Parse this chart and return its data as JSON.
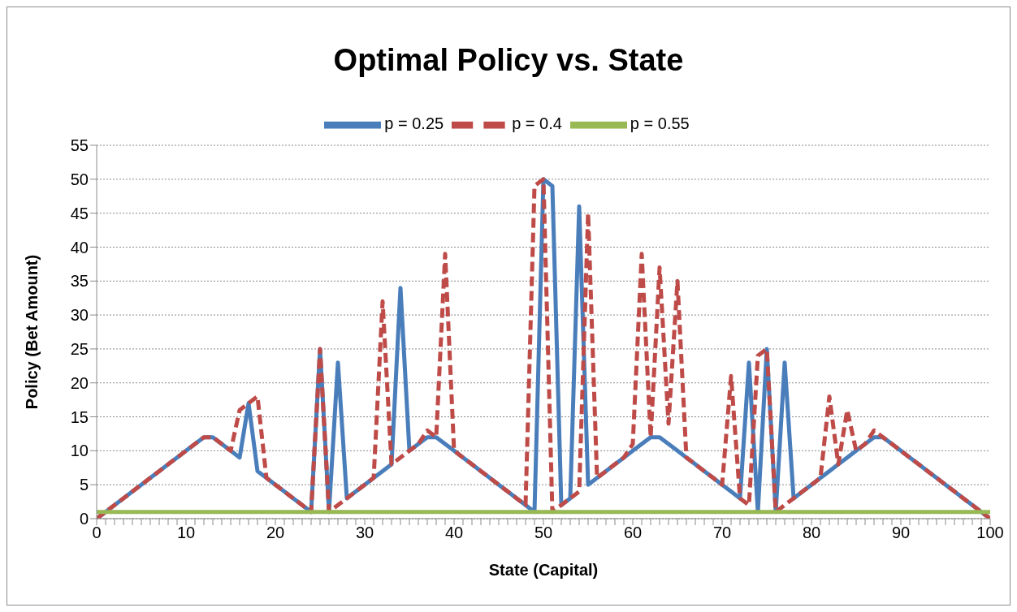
{
  "chart_data": {
    "type": "line",
    "title": "Optimal Policy vs. State",
    "xlabel": "State (Capital)",
    "ylabel": "Policy (Bet Amount)",
    "x": [
      0,
      1,
      2,
      3,
      4,
      5,
      6,
      7,
      8,
      9,
      10,
      11,
      12,
      13,
      14,
      15,
      16,
      17,
      18,
      19,
      20,
      21,
      22,
      23,
      24,
      25,
      26,
      27,
      28,
      29,
      30,
      31,
      32,
      33,
      34,
      35,
      36,
      37,
      38,
      39,
      40,
      41,
      42,
      43,
      44,
      45,
      46,
      47,
      48,
      49,
      50,
      51,
      52,
      53,
      54,
      55,
      56,
      57,
      58,
      59,
      60,
      61,
      62,
      63,
      64,
      65,
      66,
      67,
      68,
      69,
      70,
      71,
      72,
      73,
      74,
      75,
      76,
      77,
      78,
      79,
      80,
      81,
      82,
      83,
      84,
      85,
      86,
      87,
      88,
      89,
      90,
      91,
      92,
      93,
      94,
      95,
      96,
      97,
      98,
      99,
      100
    ],
    "series": [
      {
        "name": "p = 0.25",
        "color": "#4a7ebb",
        "line_style": "solid",
        "values": [
          0,
          1,
          2,
          3,
          4,
          5,
          6,
          7,
          8,
          9,
          10,
          11,
          12,
          12,
          11,
          10,
          9,
          17,
          7,
          6,
          5,
          4,
          3,
          2,
          1,
          25,
          1,
          23,
          3,
          4,
          5,
          6,
          7,
          8,
          34,
          10,
          11,
          12,
          12,
          11,
          10,
          9,
          8,
          7,
          6,
          5,
          4,
          3,
          2,
          1,
          50,
          49,
          2,
          3,
          46,
          5,
          6,
          7,
          8,
          9,
          10,
          11,
          12,
          12,
          11,
          10,
          9,
          8,
          7,
          6,
          5,
          4,
          3,
          23,
          1,
          25,
          1,
          23,
          3,
          4,
          5,
          6,
          7,
          8,
          9,
          10,
          11,
          12,
          12,
          11,
          10,
          9,
          8,
          7,
          6,
          5,
          4,
          3,
          2,
          1,
          0
        ]
      },
      {
        "name": "p = 0.4",
        "color": "#be4b48",
        "line_style": "dashed",
        "values": [
          0,
          1,
          2,
          3,
          4,
          5,
          6,
          7,
          8,
          9,
          10,
          11,
          12,
          12,
          11,
          10,
          16,
          17,
          18,
          6,
          5,
          4,
          3,
          2,
          1,
          25,
          1,
          2,
          3,
          4,
          5,
          6,
          32,
          8,
          9,
          10,
          11,
          13,
          12,
          39,
          10,
          9,
          8,
          7,
          6,
          5,
          4,
          3,
          2,
          49,
          50,
          1,
          2,
          3,
          4,
          45,
          6,
          7,
          8,
          9,
          11,
          39,
          12,
          37,
          14,
          35,
          9,
          8,
          7,
          6,
          5,
          21,
          3,
          2,
          24,
          25,
          1,
          2,
          3,
          4,
          5,
          6,
          18,
          8,
          16,
          10,
          11,
          13,
          12,
          11,
          10,
          9,
          8,
          7,
          6,
          5,
          4,
          3,
          2,
          1,
          0
        ]
      },
      {
        "name": "p = 0.55",
        "color": "#98b954",
        "line_style": "solid",
        "values": [
          1,
          1,
          1,
          1,
          1,
          1,
          1,
          1,
          1,
          1,
          1,
          1,
          1,
          1,
          1,
          1,
          1,
          1,
          1,
          1,
          1,
          1,
          1,
          1,
          1,
          1,
          1,
          1,
          1,
          1,
          1,
          1,
          1,
          1,
          1,
          1,
          1,
          1,
          1,
          1,
          1,
          1,
          1,
          1,
          1,
          1,
          1,
          1,
          1,
          1,
          1,
          1,
          1,
          1,
          1,
          1,
          1,
          1,
          1,
          1,
          1,
          1,
          1,
          1,
          1,
          1,
          1,
          1,
          1,
          1,
          1,
          1,
          1,
          1,
          1,
          1,
          1,
          1,
          1,
          1,
          1,
          1,
          1,
          1,
          1,
          1,
          1,
          1,
          1,
          1,
          1,
          1,
          1,
          1,
          1,
          1,
          1,
          1,
          1,
          1,
          1
        ]
      }
    ],
    "xlim": [
      0,
      100
    ],
    "xticks": [
      0,
      {
        "value": 1,
        "label": null
      },
      {
        "value": 2,
        "label": null
      },
      {
        "value": 3,
        "label": null
      },
      {
        "value": 4,
        "label": null
      },
      {
        "value": 5,
        "label": null
      },
      {
        "value": 6,
        "label": null
      },
      {
        "value": 7,
        "label": null
      },
      {
        "value": 8,
        "label": null
      },
      {
        "value": 9,
        "label": null
      },
      10,
      {
        "value": 11,
        "label": null
      },
      {
        "value": 12,
        "label": null
      },
      {
        "value": 13,
        "label": null
      },
      {
        "value": 14,
        "label": null
      },
      {
        "value": 15,
        "label": null
      },
      {
        "value": 16,
        "label": null
      },
      {
        "value": 17,
        "label": null
      },
      {
        "value": 18,
        "label": null
      },
      {
        "value": 19,
        "label": null
      },
      20,
      {
        "value": 21,
        "label": null
      },
      {
        "value": 22,
        "label": null
      },
      {
        "value": 23,
        "label": null
      },
      {
        "value": 24,
        "label": null
      },
      {
        "value": 25,
        "label": null
      },
      {
        "value": 26,
        "label": null
      },
      {
        "value": 27,
        "label": null
      },
      {
        "value": 28,
        "label": null
      },
      {
        "value": 29,
        "label": null
      },
      30,
      {
        "value": 31,
        "label": null
      },
      {
        "value": 32,
        "label": null
      },
      {
        "value": 33,
        "label": null
      },
      {
        "value": 34,
        "label": null
      },
      {
        "value": 35,
        "label": null
      },
      {
        "value": 36,
        "label": null
      },
      {
        "value": 37,
        "label": null
      },
      {
        "value": 38,
        "label": null
      },
      {
        "value": 39,
        "label": null
      },
      40,
      {
        "value": 41,
        "label": null
      },
      {
        "value": 42,
        "label": null
      },
      {
        "value": 43,
        "label": null
      },
      {
        "value": 44,
        "label": null
      },
      {
        "value": 45,
        "label": null
      },
      {
        "value": 46,
        "label": null
      },
      {
        "value": 47,
        "label": null
      },
      {
        "value": 48,
        "label": null
      },
      {
        "value": 49,
        "label": null
      },
      50,
      {
        "value": 51,
        "label": null
      },
      {
        "value": 52,
        "label": null
      },
      {
        "value": 53,
        "label": null
      },
      {
        "value": 54,
        "label": null
      },
      {
        "value": 55,
        "label": null
      },
      {
        "value": 56,
        "label": null
      },
      {
        "value": 57,
        "label": null
      },
      {
        "value": 58,
        "label": null
      },
      {
        "value": 59,
        "label": null
      },
      60,
      {
        "value": 61,
        "label": null
      },
      {
        "value": 62,
        "label": null
      },
      {
        "value": 63,
        "label": null
      },
      {
        "value": 64,
        "label": null
      },
      {
        "value": 65,
        "label": null
      },
      {
        "value": 66,
        "label": null
      },
      {
        "value": 67,
        "label": null
      },
      {
        "value": 68,
        "label": null
      },
      {
        "value": 69,
        "label": null
      },
      70,
      {
        "value": 71,
        "label": null
      },
      {
        "value": 72,
        "label": null
      },
      {
        "value": 73,
        "label": null
      },
      {
        "value": 74,
        "label": null
      },
      {
        "value": 75,
        "label": null
      },
      {
        "value": 76,
        "label": null
      },
      {
        "value": 77,
        "label": null
      },
      {
        "value": 78,
        "label": null
      },
      {
        "value": 79,
        "label": null
      },
      80,
      {
        "value": 81,
        "label": null
      },
      {
        "value": 82,
        "label": null
      },
      {
        "value": 83,
        "label": null
      },
      {
        "value": 84,
        "label": null
      },
      {
        "value": 85,
        "label": null
      },
      {
        "value": 86,
        "label": null
      },
      {
        "value": 87,
        "label": null
      },
      {
        "value": 88,
        "label": null
      },
      {
        "value": 89,
        "label": null
      },
      90,
      {
        "value": 91,
        "label": null
      },
      {
        "value": 92,
        "label": null
      },
      {
        "value": 93,
        "label": null
      },
      {
        "value": 94,
        "label": null
      },
      {
        "value": 95,
        "label": null
      },
      {
        "value": 96,
        "label": null
      },
      {
        "value": 97,
        "label": null
      },
      {
        "value": 98,
        "label": null
      },
      {
        "value": 99,
        "label": null
      },
      100
    ],
    "ylim": [
      0,
      55
    ],
    "yticks": [
      0,
      5,
      10,
      15,
      20,
      25,
      30,
      35,
      40,
      45,
      50,
      55
    ],
    "grid": "y",
    "legend": "top",
    "marker": "none"
  }
}
